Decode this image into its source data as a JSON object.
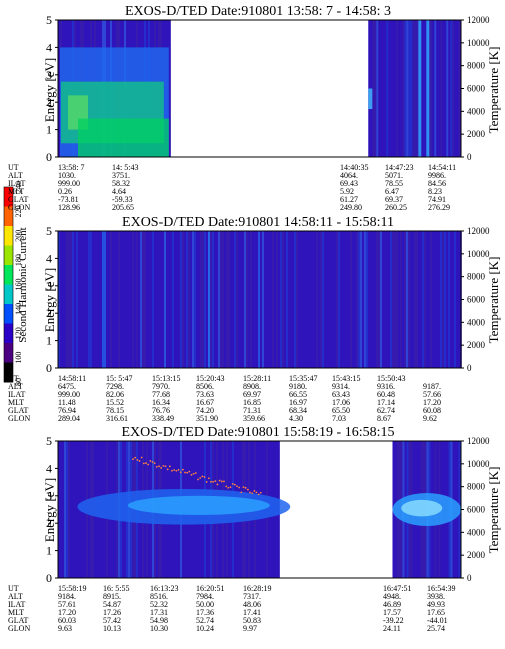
{
  "chart_data": [
    {
      "type": "heatmap",
      "title": "EXOS-D/TED   Date:910801  13:58: 7 - 14:58: 3",
      "ylabel": "Energy [eV]",
      "y2label": "Temperature [K]",
      "ylim": [
        0,
        5
      ],
      "yticks": [
        0,
        1,
        2,
        3,
        4,
        5
      ],
      "y2lim": [
        0,
        12000
      ],
      "y2ticks": [
        0,
        2000,
        4000,
        6000,
        8000,
        10000,
        12000
      ],
      "data_segments": [
        [
          0.0,
          0.28
        ],
        [
          0.77,
          1.0
        ]
      ],
      "row_labels": [
        "UT",
        "ALT",
        "ILAT",
        "MLT",
        "GLAT",
        "GLON"
      ],
      "time_columns": [
        {
          "time": "13:58: 7",
          "values": [
            "1030.",
            "999.00",
            "0.26",
            "-73.81",
            "128.96"
          ]
        },
        {
          "time": "14: 5:43",
          "values": [
            "3751.",
            "58.32",
            "4.64",
            "-59.33",
            "205.65"
          ]
        },
        {
          "time": "14:40:35",
          "values": [
            "4064.",
            "69.43",
            "5.92",
            "61.27",
            "249.80"
          ]
        },
        {
          "time": "14:47:23",
          "values": [
            "5071.",
            "78.55",
            "6.47",
            "69.37",
            "260.25"
          ]
        },
        {
          "time": "14:54:11",
          "values": [
            "9986.",
            "84.56",
            "8.23",
            "74.91",
            "276.29"
          ]
        }
      ]
    },
    {
      "type": "heatmap",
      "title": "EXOS-D/TED   Date:910801  14:58:11 - 15:58:11",
      "ylabel": "Energy [eV]",
      "y2label": "Temperature [K]",
      "ylim": [
        0,
        5
      ],
      "yticks": [
        0,
        1,
        2,
        3,
        4,
        5
      ],
      "y2lim": [
        0,
        12000
      ],
      "y2ticks": [
        0,
        2000,
        4000,
        6000,
        8000,
        10000,
        12000
      ],
      "data_segments": [
        [
          0.0,
          1.0
        ]
      ],
      "row_labels": [
        "UT",
        "ALT",
        "ILAT",
        "MLT",
        "GLAT",
        "GLON"
      ],
      "time_columns": [
        {
          "time": "14:58:11",
          "values": [
            "6475.",
            "999.00",
            "11.48",
            "76.94",
            "289.04"
          ]
        },
        {
          "time": "15: 5:47",
          "values": [
            "7298.",
            "82.06",
            "15.52",
            "78.15",
            "316.61"
          ]
        },
        {
          "time": "15:13:15",
          "values": [
            "7970.",
            "77.68",
            "16.34",
            "76.76",
            "338.49"
          ]
        },
        {
          "time": "15:20:43",
          "values": [
            "8506.",
            "73.63",
            "16.67",
            "74.20",
            "351.90"
          ]
        },
        {
          "time": "15:28:11",
          "values": [
            "8908.",
            "69.97",
            "16.85",
            "71.31",
            "359.66"
          ]
        },
        {
          "time": "15:35:47",
          "values": [
            "9180.",
            "66.55",
            "16.97",
            "68.34",
            "4.30"
          ]
        },
        {
          "time": "15:43:15",
          "values": [
            "9314.",
            "63.43",
            "17.06",
            "65.50",
            "7.03"
          ]
        },
        {
          "time": "15:50:43",
          "values": [
            "9316.",
            "60.48",
            "17.14",
            "62.74",
            "8.67"
          ]
        },
        {
          "time": "",
          "values": [
            "9187.",
            "57.66",
            "17.20",
            "60.08",
            "9.62"
          ]
        }
      ]
    },
    {
      "type": "heatmap",
      "title": "EXOS-D/TED   Date:910801  15:58:19 - 16:58:15",
      "ylabel": "Energy [eV]",
      "y2label": "Temperature [K]",
      "ylim": [
        0,
        5
      ],
      "yticks": [
        0,
        1,
        2,
        3,
        4,
        5
      ],
      "y2lim": [
        0,
        12000
      ],
      "y2ticks": [
        0,
        2000,
        4000,
        6000,
        8000,
        10000,
        12000
      ],
      "data_segments": [
        [
          0.0,
          0.55
        ],
        [
          0.83,
          1.0
        ]
      ],
      "row_labels": [
        "UT",
        "ALT",
        "ILAT",
        "MLT",
        "GLAT",
        "GLON"
      ],
      "time_columns": [
        {
          "time": "15:58:19",
          "values": [
            "9184.",
            "57.61",
            "17.20",
            "60.03",
            "9.63"
          ]
        },
        {
          "time": "16: 5:55",
          "values": [
            "8915.",
            "54.87",
            "17.26",
            "57.42",
            "10.13"
          ]
        },
        {
          "time": "16:13:23",
          "values": [
            "8516.",
            "52.32",
            "17.31",
            "54.98",
            "10.30"
          ]
        },
        {
          "time": "16:20:51",
          "values": [
            "7984.",
            "50.00",
            "17.36",
            "52.74",
            "10.24"
          ]
        },
        {
          "time": "16:28:19",
          "values": [
            "7317.",
            "48.06",
            "17.41",
            "50.83",
            "9.97"
          ]
        },
        {
          "time": "16:47:51",
          "values": [
            "4948.",
            "46.89",
            "17.57",
            "-39.22",
            "24.11"
          ]
        },
        {
          "time": "16:54:39",
          "values": [
            "3938.",
            "49.93",
            "17.65",
            "-44.01",
            "25.74"
          ]
        }
      ]
    }
  ],
  "colorbar": {
    "label": "Second Harmonic Current",
    "ticks": [
      "80",
      "100",
      "120",
      "140",
      "160",
      "180",
      "200",
      "220",
      "240"
    ],
    "colors": [
      "#000000",
      "#4b0082",
      "#2a00c8",
      "#0050ff",
      "#00c8c8",
      "#00e65a",
      "#9be600",
      "#ffe600",
      "#ff6400",
      "#ff0000"
    ]
  }
}
